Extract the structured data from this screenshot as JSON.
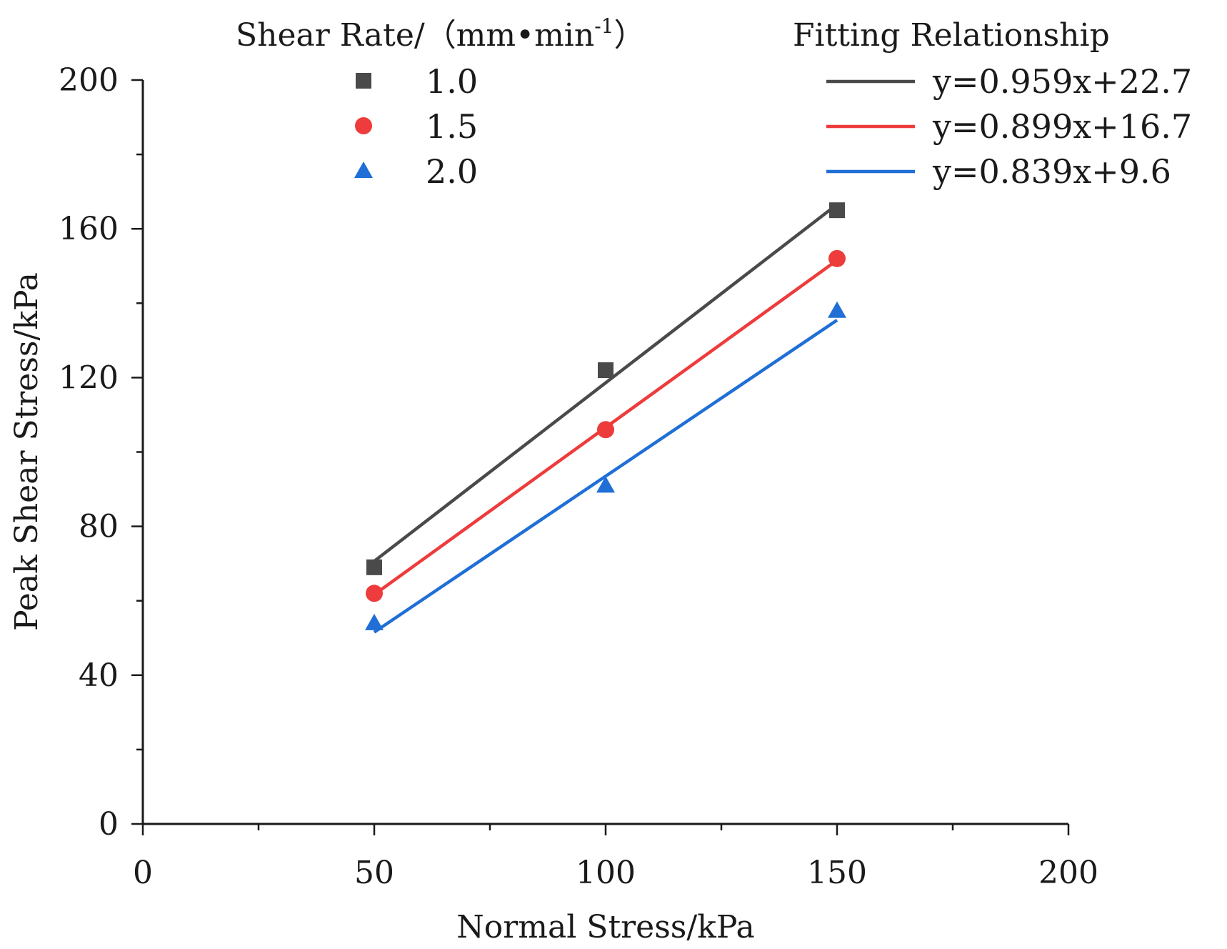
{
  "chart_data": {
    "type": "scatter",
    "title": "",
    "xlabel": "Normal Stress/kPa",
    "ylabel": "Peak Shear Stress/kPa",
    "xlim": [
      0,
      200
    ],
    "ylim": [
      0,
      200
    ],
    "xticks": [
      "0",
      "50",
      "100",
      "150",
      "200"
    ],
    "yticks": [
      "0",
      "40",
      "80",
      "120",
      "160",
      "200"
    ],
    "legend": {
      "placement": "top",
      "marker_title": "Shear Rate/（mm•min",
      "marker_title_sup": "-1",
      "marker_title_close": "）",
      "fit_title": "Fitting Relationship"
    },
    "series": [
      {
        "name": "1.0",
        "marker": "square",
        "color": "#4a4a4a",
        "x": [
          50,
          100,
          150
        ],
        "y": [
          69,
          122,
          165
        ],
        "fit": {
          "label": "y=0.959x+22.7",
          "slope": 0.959,
          "intercept": 22.7
        }
      },
      {
        "name": "1.5",
        "marker": "circle",
        "color": "#ee3b3b",
        "x": [
          50,
          100,
          150
        ],
        "y": [
          62,
          106,
          152
        ],
        "fit": {
          "label": "y=0.899x+16.7",
          "slope": 0.899,
          "intercept": 16.7
        }
      },
      {
        "name": "2.0",
        "marker": "triangle",
        "color": "#1f6fd6",
        "x": [
          50,
          100,
          150
        ],
        "y": [
          54,
          91,
          138
        ],
        "fit": {
          "label": "y=0.839x+9.6",
          "slope": 0.839,
          "intercept": 9.6
        }
      }
    ]
  }
}
